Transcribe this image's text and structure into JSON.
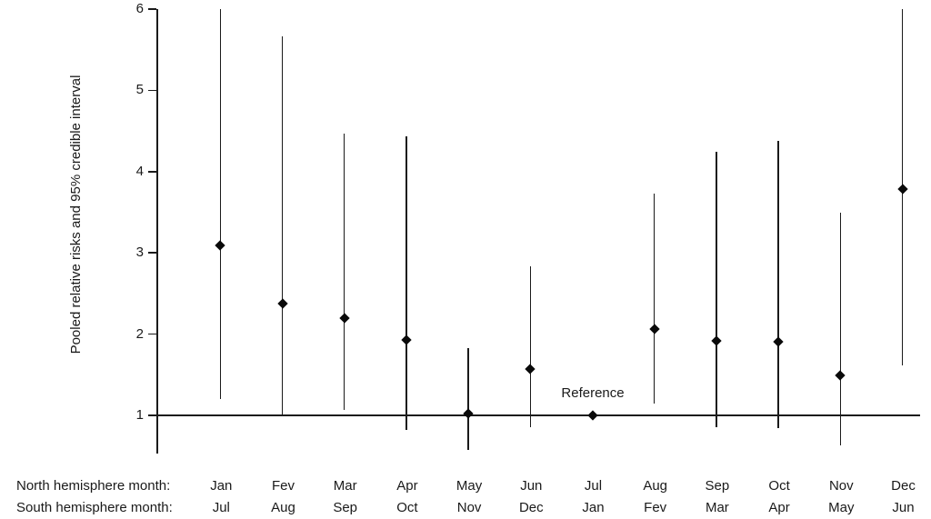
{
  "figure": {
    "y_axis_label": "Pooled relative risks and 95% credible interval",
    "reference_label": "Reference",
    "x_axis_row1_header": "North hemisphere month:",
    "x_axis_row2_header": "South hemisphere month:"
  },
  "colors": {
    "line": "#1a1a1a",
    "marker": "#0a0a0a",
    "text": "#1a1a1a",
    "background": "#ffffff"
  },
  "chart_data": {
    "type": "scatter",
    "subtype": "point-range-forest-plot",
    "title": "",
    "xlabel": "",
    "ylabel": "Pooled relative risks and 95% credible interval",
    "ylim": [
      0.5,
      6
    ],
    "yticks": [
      1,
      2,
      3,
      4,
      5,
      6
    ],
    "grid": false,
    "reference": {
      "value": 1.0,
      "label": "Reference",
      "at_north_month": "Jul"
    },
    "categories_north": [
      "Jan",
      "Fev",
      "Mar",
      "Apr",
      "May",
      "Jun",
      "Jul",
      "Aug",
      "Sep",
      "Oct",
      "Nov",
      "Dec"
    ],
    "categories_south": [
      "Jul",
      "Aug",
      "Sep",
      "Oct",
      "Nov",
      "Dec",
      "Jan",
      "Fev",
      "Mar",
      "Apr",
      "May",
      "Jun"
    ],
    "series": [
      {
        "north": "Jan",
        "south": "Jul",
        "value": 3.09,
        "lower": 1.2,
        "upper": 6.0
      },
      {
        "north": "Fev",
        "south": "Aug",
        "value": 2.38,
        "lower": 1.01,
        "upper": 5.67
      },
      {
        "north": "Mar",
        "south": "Sep",
        "value": 2.2,
        "lower": 1.07,
        "upper": 4.47
      },
      {
        "north": "Apr",
        "south": "Oct",
        "value": 1.93,
        "lower": 0.82,
        "upper": 4.43
      },
      {
        "north": "May",
        "south": "Nov",
        "value": 1.02,
        "lower": 0.57,
        "upper": 1.83
      },
      {
        "north": "Jun",
        "south": "Dec",
        "value": 1.57,
        "lower": 0.86,
        "upper": 2.84
      },
      {
        "north": "Jul",
        "south": "Jan",
        "value": 1.0,
        "lower": null,
        "upper": null
      },
      {
        "north": "Aug",
        "south": "Fev",
        "value": 2.06,
        "lower": 1.14,
        "upper": 3.73
      },
      {
        "north": "Sep",
        "south": "Mar",
        "value": 1.92,
        "lower": 0.86,
        "upper": 4.24
      },
      {
        "north": "Oct",
        "south": "Apr",
        "value": 1.91,
        "lower": 0.84,
        "upper": 4.38
      },
      {
        "north": "Nov",
        "south": "May",
        "value": 1.49,
        "lower": 0.63,
        "upper": 3.5
      },
      {
        "north": "Dec",
        "south": "Jun",
        "value": 3.78,
        "lower": 1.62,
        "upper": 6.0
      }
    ]
  }
}
